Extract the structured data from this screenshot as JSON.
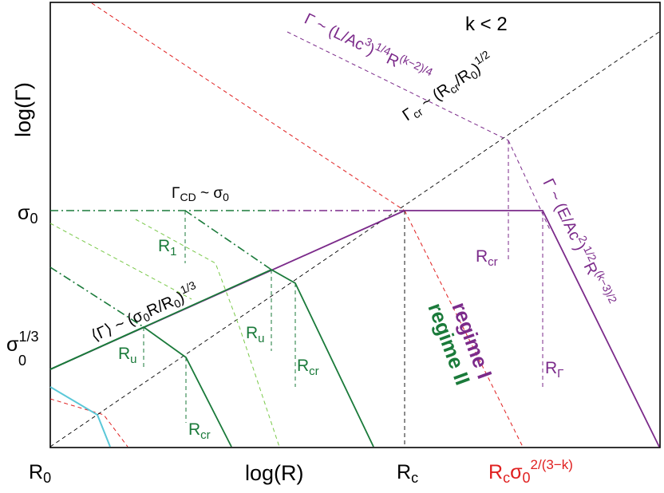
{
  "axes": {
    "xlabel": "log(R)",
    "ylabel": "log(Γ)",
    "condition": "k < 2"
  },
  "ticks": {
    "x_r0": "R",
    "x_r0_sub": "0",
    "x_rc": "R",
    "x_rc_sub": "c",
    "x_rcsigma": "R",
    "x_rcsigma_sub": "c",
    "x_rcsigma_sigma": "σ",
    "x_rcsigma_sigma_sub": "0",
    "x_rcsigma_exp": "2/(3−k)",
    "y_sigma0": "σ",
    "y_sigma0_sub": "0",
    "y_sigma13": "σ",
    "y_sigma13_sub": "0",
    "y_sigma13_exp": "1/3"
  },
  "annotations": {
    "gamma_cd": {
      "main": "Γ",
      "sub": "CD",
      "rest": " ~ σ",
      "sub2": "0"
    },
    "gamma_cr": {
      "main": "Γ",
      "sub": "cr",
      "rest": " ~ (R",
      "sub2": "cr",
      "rest2": "/R",
      "sub3": "0",
      "rest3": ")",
      "exp": "1/2"
    },
    "gamma_l": {
      "a": "Γ ~ (L/Ac",
      "e1": "3",
      "b": ")",
      "e2": "1/4",
      "c": "R",
      "e3": "(k−2)/4"
    },
    "gamma_e": {
      "a": "Γ ~ (E/Ac",
      "e1": "2",
      "b": ")",
      "e2": "1/2",
      "c": "R",
      "e3": "(k−3)/2"
    },
    "mean_gamma": {
      "a": "⟨Γ⟩ ~ (σ",
      "s1": "0",
      "b": "R/R",
      "s2": "0",
      "c": ")",
      "e": "1/3"
    },
    "regime1": "regime I",
    "regime2": "regime II",
    "labels": {
      "R1": {
        "m": "R",
        "s": "1"
      },
      "Ru_a": {
        "m": "R",
        "s": "u"
      },
      "Ru_b": {
        "m": "R",
        "s": "u"
      },
      "Rcr_green_a": {
        "m": "R",
        "s": "cr"
      },
      "Rcr_green_b": {
        "m": "R",
        "s": "cr"
      },
      "Rcr_purple": {
        "m": "R",
        "s": "cr"
      },
      "RGamma": {
        "m": "R",
        "s": "Γ"
      }
    }
  },
  "colors": {
    "purple": "#7b2a8a",
    "green": "#1a7a3a",
    "lightgreen": "#7ac94a",
    "red": "#e02020",
    "black": "#000000",
    "cyan": "#5bc8d8"
  }
}
